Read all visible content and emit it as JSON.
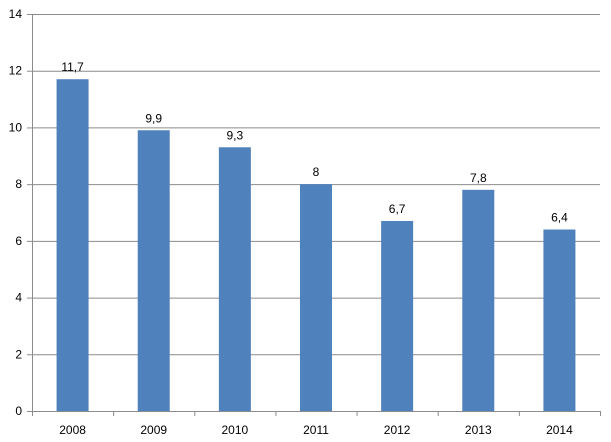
{
  "chart_data": {
    "type": "bar",
    "title": "",
    "xlabel": "",
    "ylabel": "",
    "categories": [
      "2008",
      "2009",
      "2010",
      "2011",
      "2012",
      "2013",
      "2014"
    ],
    "values": [
      11.7,
      9.9,
      9.3,
      8,
      6.7,
      7.8,
      6.4
    ],
    "data_labels": [
      "11,7",
      "9,9",
      "9,3",
      "8",
      "6,7",
      "7,8",
      "6,4"
    ],
    "ylim": [
      0,
      14
    ],
    "yticks": [
      "0",
      "2",
      "4",
      "6",
      "8",
      "10",
      "12",
      "14"
    ],
    "grid": true,
    "legend": "none",
    "colors": {
      "bar": "#4F81BD",
      "grid": "#8C8C8C",
      "axis": "#8C8C8C",
      "background": "#FFFFFF"
    }
  }
}
